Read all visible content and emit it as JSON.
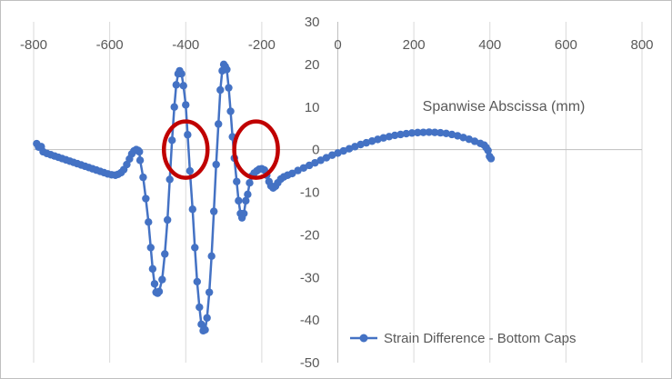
{
  "chart_data": {
    "type": "scatter",
    "title": "",
    "xlabel": "Spanwise Abscissa (mm)",
    "ylabel": "",
    "xlim": [
      -800,
      800
    ],
    "ylim": [
      -50,
      30
    ],
    "x_ticks": [
      -800,
      -600,
      -400,
      -200,
      0,
      200,
      400,
      600,
      800
    ],
    "y_ticks": [
      30,
      20,
      10,
      0,
      -10,
      -20,
      -30,
      -40,
      -50
    ],
    "grid": "vertical",
    "legend_position": "bottom-right",
    "series": [
      {
        "name": "Strain Difference - Bottom Caps",
        "color": "#4472c4",
        "marker": "circle",
        "line": true,
        "points": [
          [
            -792,
            1.4
          ],
          [
            -787,
            0.6
          ],
          [
            -780,
            0.7
          ],
          [
            -775,
            -0.5
          ],
          [
            -765,
            -0.9
          ],
          [
            -755,
            -1.2
          ],
          [
            -745,
            -1.5
          ],
          [
            -735,
            -1.8
          ],
          [
            -725,
            -2.1
          ],
          [
            -715,
            -2.4
          ],
          [
            -705,
            -2.7
          ],
          [
            -695,
            -3.0
          ],
          [
            -685,
            -3.3
          ],
          [
            -675,
            -3.6
          ],
          [
            -665,
            -3.9
          ],
          [
            -655,
            -4.2
          ],
          [
            -645,
            -4.5
          ],
          [
            -635,
            -4.8
          ],
          [
            -625,
            -5.1
          ],
          [
            -615,
            -5.4
          ],
          [
            -605,
            -5.7
          ],
          [
            -595,
            -5.9
          ],
          [
            -585,
            -6.0
          ],
          [
            -578,
            -5.8
          ],
          [
            -570,
            -5.4
          ],
          [
            -563,
            -4.7
          ],
          [
            -555,
            -3.5
          ],
          [
            -548,
            -2.2
          ],
          [
            -542,
            -1.0
          ],
          [
            -536,
            -0.3
          ],
          [
            -530,
            0.0
          ],
          [
            -525,
            -0.2
          ],
          [
            -522,
            -0.5
          ],
          [
            -520,
            -2.5
          ],
          [
            -512,
            -6.5
          ],
          [
            -505,
            -11.5
          ],
          [
            -498,
            -17.0
          ],
          [
            -492,
            -23.0
          ],
          [
            -487,
            -28.0
          ],
          [
            -482,
            -31.5
          ],
          [
            -478,
            -33.5
          ],
          [
            -474,
            -33.7
          ],
          [
            -470,
            -33.3
          ],
          [
            -462,
            -30.5
          ],
          [
            -455,
            -24.5
          ],
          [
            -448,
            -16.5
          ],
          [
            -442,
            -7.0
          ],
          [
            -436,
            2.2
          ],
          [
            -430,
            10.0
          ],
          [
            -425,
            15.2
          ],
          [
            -420,
            17.8
          ],
          [
            -416,
            18.5
          ],
          [
            -411,
            17.8
          ],
          [
            -406,
            15.0
          ],
          [
            -400,
            10.5
          ],
          [
            -395,
            3.5
          ],
          [
            -389,
            -5.0
          ],
          [
            -382,
            -14.0
          ],
          [
            -376,
            -23.0
          ],
          [
            -370,
            -31.0
          ],
          [
            -364,
            -37.0
          ],
          [
            -359,
            -41.0
          ],
          [
            -354,
            -42.5
          ],
          [
            -349,
            -42.3
          ],
          [
            -344,
            -39.5
          ],
          [
            -338,
            -33.5
          ],
          [
            -332,
            -25.0
          ],
          [
            -326,
            -14.5
          ],
          [
            -320,
            -3.5
          ],
          [
            -314,
            6.0
          ],
          [
            -309,
            14.0
          ],
          [
            -304,
            18.5
          ],
          [
            -300,
            20.0
          ],
          [
            -296,
            19.5
          ],
          [
            -292,
            18.8
          ],
          [
            -287,
            14.5
          ],
          [
            -282,
            9.0
          ],
          [
            -277,
            3.0
          ],
          [
            -272,
            -2.0
          ],
          [
            -266,
            -7.5
          ],
          [
            -261,
            -12.0
          ],
          [
            -256,
            -15.0
          ],
          [
            -252,
            -16.0
          ],
          [
            -247,
            -15.0
          ],
          [
            -242,
            -12.0
          ],
          [
            -237,
            -10.5
          ],
          [
            -232,
            -7.8
          ],
          [
            -226,
            -6.2
          ],
          [
            -220,
            -5.5
          ],
          [
            -213,
            -5.0
          ],
          [
            -207,
            -4.6
          ],
          [
            -200,
            -4.5
          ],
          [
            -193,
            -4.8
          ],
          [
            -187,
            -6.0
          ],
          [
            -181,
            -7.5
          ],
          [
            -176,
            -8.5
          ],
          [
            -170,
            -9.0
          ],
          [
            -164,
            -8.6
          ],
          [
            -158,
            -7.8
          ],
          [
            -150,
            -6.9
          ],
          [
            -142,
            -6.4
          ],
          [
            -132,
            -6.0
          ],
          [
            -120,
            -5.6
          ],
          [
            -105,
            -4.9
          ],
          [
            -90,
            -4.3
          ],
          [
            -75,
            -3.7
          ],
          [
            -60,
            -3.1
          ],
          [
            -45,
            -2.5
          ],
          [
            -30,
            -1.9
          ],
          [
            -15,
            -1.3
          ],
          [
            0,
            -0.8
          ],
          [
            15,
            -0.3
          ],
          [
            30,
            0.2
          ],
          [
            45,
            0.7
          ],
          [
            60,
            1.2
          ],
          [
            75,
            1.6
          ],
          [
            90,
            2.0
          ],
          [
            105,
            2.4
          ],
          [
            120,
            2.75
          ],
          [
            135,
            3.05
          ],
          [
            150,
            3.35
          ],
          [
            165,
            3.55
          ],
          [
            180,
            3.75
          ],
          [
            195,
            3.9
          ],
          [
            210,
            4.0
          ],
          [
            225,
            4.05
          ],
          [
            240,
            4.1
          ],
          [
            255,
            4.05
          ],
          [
            270,
            3.95
          ],
          [
            285,
            3.8
          ],
          [
            300,
            3.55
          ],
          [
            315,
            3.25
          ],
          [
            330,
            2.85
          ],
          [
            345,
            2.45
          ],
          [
            360,
            1.95
          ],
          [
            375,
            1.45
          ],
          [
            385,
            1.05
          ],
          [
            390,
            0.5
          ],
          [
            395,
            -0.2
          ],
          [
            399,
            -1.6
          ],
          [
            403,
            -2.1
          ]
        ]
      }
    ]
  },
  "annotations": [
    {
      "shape": "ellipse",
      "color": "#c00000",
      "center": [
        -400,
        0
      ]
    },
    {
      "shape": "ellipse",
      "color": "#c00000",
      "center": [
        -215,
        0
      ]
    }
  ]
}
